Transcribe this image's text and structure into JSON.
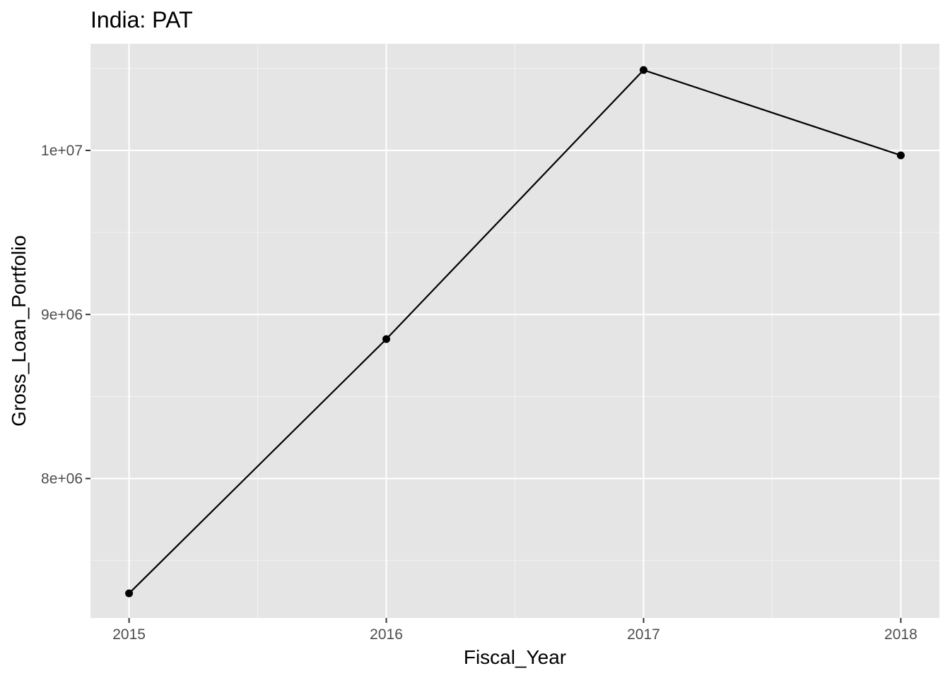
{
  "chart_data": {
    "type": "line",
    "title": "India:  PAT",
    "xlabel": "Fiscal_Year",
    "ylabel": "Gross_Loan_Portfolio",
    "x": [
      2015,
      2016,
      2017,
      2018
    ],
    "x_tick_labels": [
      "2015",
      "2016",
      "2017",
      "2018"
    ],
    "series": [
      {
        "values": [
          7300000,
          8850000,
          10490000,
          9970000
        ]
      }
    ],
    "y_ticks": [
      8000000,
      9000000,
      10000000
    ],
    "y_tick_labels": [
      "8e+06",
      "9e+06",
      "1e+07"
    ],
    "xlim": [
      2014.85,
      2018.15
    ],
    "ylim": [
      7150000,
      10650000
    ],
    "grid": true,
    "legend": "none",
    "colors": {
      "panel_background": "#e5e5e5",
      "grid_major": "#ffffff",
      "grid_minor": "#f2f2f2",
      "line": "#000000",
      "point": "#000000",
      "tick_label": "#4d4d4d",
      "tick_mark": "#333333"
    }
  }
}
